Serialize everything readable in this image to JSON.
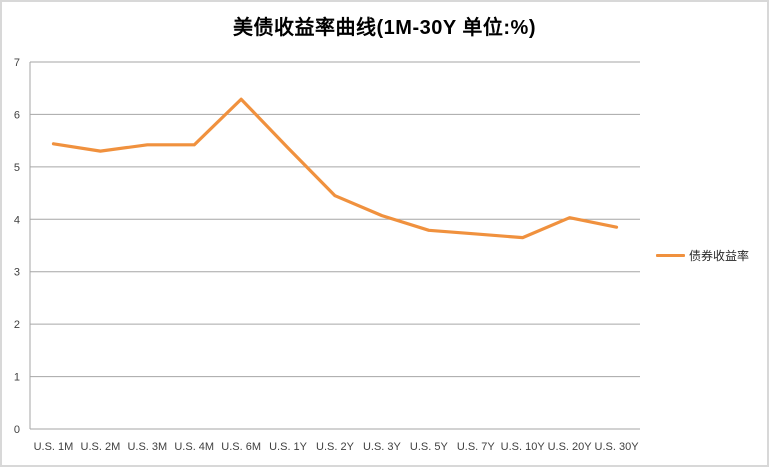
{
  "chart": {
    "title": "美债收益率曲线(1M-30Y 单位:%)",
    "legend_label": "债券收益率"
  },
  "colors": {
    "line": "#F0913E",
    "grid": "#A6A6A6",
    "axis_text": "#404040",
    "title_text": "#000000",
    "border": "#D8D8D8",
    "background": "#FFFFFF"
  },
  "chart_data": {
    "type": "line",
    "title": "美债收益率曲线(1M-30Y 单位:%)",
    "categories": [
      "U.S. 1M",
      "U.S. 2M",
      "U.S. 3M",
      "U.S. 4M",
      "U.S. 6M",
      "U.S. 1Y",
      "U.S. 2Y",
      "U.S. 3Y",
      "U.S. 5Y",
      "U.S. 7Y",
      "U.S. 10Y",
      "U.S. 20Y",
      "U.S. 30Y"
    ],
    "series": [
      {
        "name": "债券收益率",
        "values": [
          5.44,
          5.3,
          5.42,
          5.42,
          6.29,
          5.36,
          4.45,
          4.07,
          3.79,
          3.72,
          3.65,
          4.03,
          3.85
        ]
      }
    ],
    "xlabel": "",
    "ylabel": "",
    "ylim": [
      0,
      7
    ],
    "yticks": [
      0,
      1,
      2,
      3,
      4,
      5,
      6,
      7
    ],
    "grid": true,
    "legend_position": "right"
  }
}
